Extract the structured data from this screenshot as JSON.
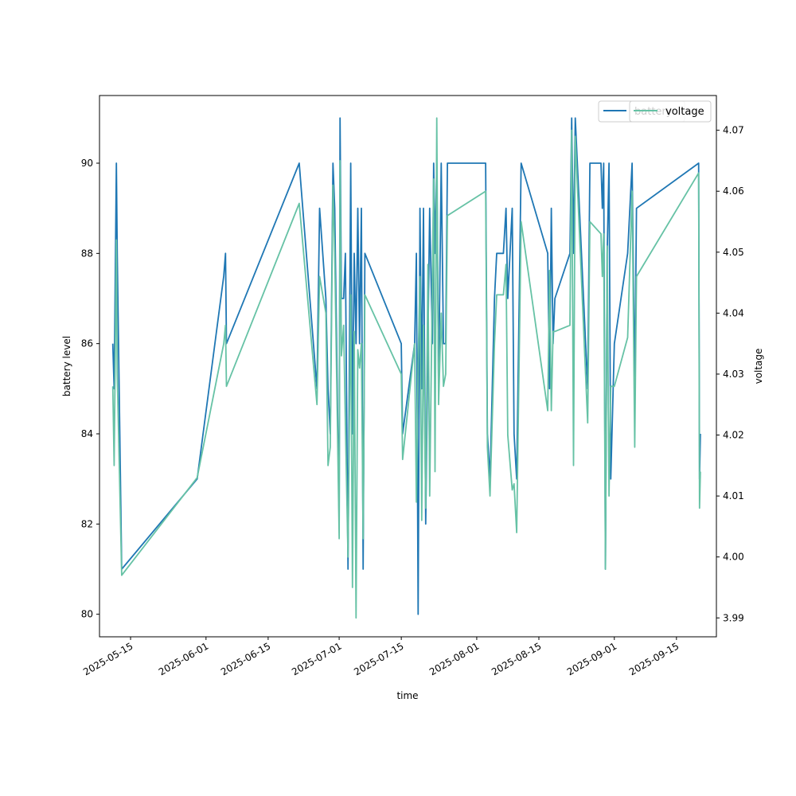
{
  "chart_data": {
    "type": "line",
    "xlabel": "time",
    "ylabel_left": "battery level",
    "ylabel_right": "voltage",
    "xlim": [
      "2025-05-08",
      "2025-09-24"
    ],
    "ylim_left": [
      79.5,
      91.5
    ],
    "ylim_right": [
      3.9869,
      4.0757
    ],
    "x_ticks": [
      "2025-05-15",
      "2025-06-01",
      "2025-06-15",
      "2025-07-01",
      "2025-07-15",
      "2025-08-01",
      "2025-08-15",
      "2025-09-01",
      "2025-09-15"
    ],
    "y_ticks_left": [
      80,
      82,
      84,
      86,
      88,
      90
    ],
    "y_ticks_right": [
      3.99,
      4.0,
      4.01,
      4.02,
      4.03,
      4.04,
      4.05,
      4.06,
      4.07
    ],
    "y_ticks_right_labels": [
      "3.99",
      "4.00",
      "4.01",
      "4.02",
      "4.03",
      "4.04",
      "4.05",
      "4.06",
      "4.07"
    ],
    "legend": {
      "placement": "top-right",
      "left_series_label": "battery",
      "right_series_label": "voltage"
    },
    "series": [
      {
        "name": "battery",
        "axis": "left",
        "color": "#1f77b4",
        "points": [
          [
            "2025-05-11",
            86.0
          ],
          [
            "2025-05-11.3",
            85.0
          ],
          [
            "2025-05-11.8",
            90.0
          ],
          [
            "2025-05-12.0",
            88.0
          ],
          [
            "2025-05-13.0",
            81.0
          ],
          [
            "2025-05-30.0",
            83.0
          ],
          [
            "2025-06-05.0",
            87.5
          ],
          [
            "2025-06-05.4",
            88.0
          ],
          [
            "2025-06-05.6",
            86.0
          ],
          [
            "2025-06-22.0",
            90.0
          ],
          [
            "2025-06-26.0",
            85.0
          ],
          [
            "2025-06-26.6",
            89.0
          ],
          [
            "2025-06-28.0",
            87.0
          ],
          [
            "2025-06-28.5",
            85.0
          ],
          [
            "2025-06-29.0",
            84.0
          ],
          [
            "2025-06-29.6",
            90.0
          ],
          [
            "2025-06-30.0",
            89.0
          ],
          [
            "2025-07-01.0",
            82.0
          ],
          [
            "2025-07-01.2",
            91.0
          ],
          [
            "2025-07-01.5",
            87.0
          ],
          [
            "2025-07-02.0",
            87.0
          ],
          [
            "2025-07-02.4",
            88.0
          ],
          [
            "2025-07-03.0",
            81.0
          ],
          [
            "2025-07-03.6",
            90.0
          ],
          [
            "2025-07-04.0",
            84.0
          ],
          [
            "2025-07-04.4",
            88.0
          ],
          [
            "2025-07-04.8",
            86.0
          ],
          [
            "2025-07-05.2",
            89.0
          ],
          [
            "2025-07-05.6",
            86.0
          ],
          [
            "2025-07-06.0",
            89.0
          ],
          [
            "2025-07-06.4",
            81.0
          ],
          [
            "2025-07-06.8",
            88.0
          ],
          [
            "2025-07-15.0",
            86.0
          ],
          [
            "2025-07-15.3",
            84.0
          ],
          [
            "2025-07-18.0",
            86.0
          ],
          [
            "2025-07-18.4",
            88.0
          ],
          [
            "2025-07-18.8",
            80.0
          ],
          [
            "2025-07-19.2",
            89.0
          ],
          [
            "2025-07-19.6",
            85.0
          ],
          [
            "2025-07-20.0",
            89.0
          ],
          [
            "2025-07-20.5",
            82.0
          ],
          [
            "2025-07-21.0",
            86.0
          ],
          [
            "2025-07-21.4",
            89.0
          ],
          [
            "2025-07-22.0",
            86.0
          ],
          [
            "2025-07-22.3",
            90.0
          ],
          [
            "2025-07-22.6",
            88.0
          ],
          [
            "2025-07-23.0",
            90.0
          ],
          [
            "2025-07-23.4",
            85.0
          ],
          [
            "2025-07-24.0",
            90.0
          ],
          [
            "2025-07-24.5",
            86.0
          ],
          [
            "2025-07-25.0",
            86.0
          ],
          [
            "2025-07-25.4",
            90.0
          ],
          [
            "2025-08-03.0",
            90.0
          ],
          [
            "2025-08-03.4",
            84.0
          ],
          [
            "2025-08-04.0",
            83.0
          ],
          [
            "2025-08-05.0",
            87.0
          ],
          [
            "2025-08-05.5",
            88.0
          ],
          [
            "2025-08-07.0",
            88.0
          ],
          [
            "2025-08-07.6",
            89.0
          ],
          [
            "2025-08-08.0",
            87.0
          ],
          [
            "2025-08-09.0",
            89.0
          ],
          [
            "2025-08-09.4",
            84.0
          ],
          [
            "2025-08-10.0",
            83.0
          ],
          [
            "2025-08-11.0",
            90.0
          ],
          [
            "2025-08-17.0",
            88.0
          ],
          [
            "2025-08-17.4",
            85.0
          ],
          [
            "2025-08-17.8",
            89.0
          ],
          [
            "2025-08-18.2",
            86.0
          ],
          [
            "2025-08-18.6",
            87.0
          ],
          [
            "2025-08-22.0",
            88.0
          ],
          [
            "2025-08-22.4",
            91.0
          ],
          [
            "2025-08-22.8",
            88.0
          ],
          [
            "2025-08-23.2",
            91.0
          ],
          [
            "2025-08-26.0",
            85.0
          ],
          [
            "2025-08-26.5",
            90.0
          ],
          [
            "2025-08-29.0",
            90.0
          ],
          [
            "2025-08-29.3",
            89.0
          ],
          [
            "2025-08-29.6",
            90.0
          ],
          [
            "2025-08-30.0",
            81.0
          ],
          [
            "2025-08-30.4",
            88.0
          ],
          [
            "2025-08-30.8",
            90.0
          ],
          [
            "2025-08-31.2",
            83.0
          ],
          [
            "2025-09-01.0",
            86.0
          ],
          [
            "2025-09-04.0",
            88.0
          ],
          [
            "2025-09-05.0",
            90.0
          ],
          [
            "2025-09-05.6",
            85.0
          ],
          [
            "2025-09-06.0",
            89.0
          ],
          [
            "2025-09-20.0",
            90.0
          ],
          [
            "2025-09-20.2",
            83.0
          ],
          [
            "2025-09-20.4",
            84.0
          ]
        ]
      },
      {
        "name": "voltage",
        "axis": "right",
        "color": "#66c2a5",
        "points": [
          [
            "2025-05-11",
            4.028
          ],
          [
            "2025-05-11.3",
            4.015
          ],
          [
            "2025-05-11.8",
            4.052
          ],
          [
            "2025-05-12.0",
            4.03
          ],
          [
            "2025-05-13.0",
            3.997
          ],
          [
            "2025-05-30.0",
            4.013
          ],
          [
            "2025-06-05.0",
            4.035
          ],
          [
            "2025-06-05.4",
            4.038
          ],
          [
            "2025-06-05.6",
            4.028
          ],
          [
            "2025-06-22.0",
            4.058
          ],
          [
            "2025-06-26.0",
            4.025
          ],
          [
            "2025-06-26.6",
            4.046
          ],
          [
            "2025-06-28.0",
            4.04
          ],
          [
            "2025-06-28.5",
            4.015
          ],
          [
            "2025-06-29.0",
            4.018
          ],
          [
            "2025-06-29.6",
            4.061
          ],
          [
            "2025-06-30.0",
            4.05
          ],
          [
            "2025-07-01.0",
            4.003
          ],
          [
            "2025-07-01.2",
            4.065
          ],
          [
            "2025-07-01.5",
            4.033
          ],
          [
            "2025-07-02.0",
            4.038
          ],
          [
            "2025-07-02.4",
            4.022
          ],
          [
            "2025-07-03.0",
            4.0
          ],
          [
            "2025-07-03.6",
            4.043
          ],
          [
            "2025-07-04.0",
            3.995
          ],
          [
            "2025-07-04.4",
            4.037
          ],
          [
            "2025-07-04.8",
            3.99
          ],
          [
            "2025-07-05.2",
            4.034
          ],
          [
            "2025-07-05.6",
            4.031
          ],
          [
            "2025-07-06.0",
            4.035
          ],
          [
            "2025-07-06.4",
            4.003
          ],
          [
            "2025-07-06.8",
            4.043
          ],
          [
            "2025-07-15.0",
            4.03
          ],
          [
            "2025-07-15.3",
            4.016
          ],
          [
            "2025-07-18.0",
            4.035
          ],
          [
            "2025-07-18.4",
            4.009
          ],
          [
            "2025-07-18.8",
            4.032
          ],
          [
            "2025-07-19.2",
            4.046
          ],
          [
            "2025-07-19.6",
            4.006
          ],
          [
            "2025-07-20.0",
            4.038
          ],
          [
            "2025-07-20.5",
            4.008
          ],
          [
            "2025-07-21.0",
            4.048
          ],
          [
            "2025-07-21.4",
            4.01
          ],
          [
            "2025-07-22.0",
            4.045
          ],
          [
            "2025-07-22.3",
            4.062
          ],
          [
            "2025-07-22.6",
            4.014
          ],
          [
            "2025-07-23.0",
            4.072
          ],
          [
            "2025-07-23.4",
            4.025
          ],
          [
            "2025-07-24.0",
            4.04
          ],
          [
            "2025-07-24.5",
            4.028
          ],
          [
            "2025-07-25.0",
            4.03
          ],
          [
            "2025-07-25.4",
            4.056
          ],
          [
            "2025-08-03.0",
            4.06
          ],
          [
            "2025-08-03.4",
            4.018
          ],
          [
            "2025-08-04.0",
            4.01
          ],
          [
            "2025-08-05.0",
            4.035
          ],
          [
            "2025-08-05.5",
            4.043
          ],
          [
            "2025-08-07.0",
            4.043
          ],
          [
            "2025-08-07.6",
            4.048
          ],
          [
            "2025-08-08.0",
            4.02
          ],
          [
            "2025-08-09.0",
            4.011
          ],
          [
            "2025-08-09.4",
            4.012
          ],
          [
            "2025-08-10.0",
            4.004
          ],
          [
            "2025-08-11.0",
            4.055
          ],
          [
            "2025-08-17.0",
            4.024
          ],
          [
            "2025-08-17.4",
            4.047
          ],
          [
            "2025-08-17.8",
            4.024
          ],
          [
            "2025-08-18.2",
            4.037
          ],
          [
            "2025-08-18.6",
            4.037
          ],
          [
            "2025-08-22.0",
            4.038
          ],
          [
            "2025-08-22.4",
            4.07
          ],
          [
            "2025-08-22.8",
            4.015
          ],
          [
            "2025-08-23.2",
            4.069
          ],
          [
            "2025-08-26.0",
            4.022
          ],
          [
            "2025-08-26.5",
            4.055
          ],
          [
            "2025-08-29.0",
            4.053
          ],
          [
            "2025-08-29.3",
            4.046
          ],
          [
            "2025-08-29.6",
            4.053
          ],
          [
            "2025-08-30.0",
            3.998
          ],
          [
            "2025-08-30.4",
            4.051
          ],
          [
            "2025-08-30.8",
            4.01
          ],
          [
            "2025-08-31.2",
            4.028
          ],
          [
            "2025-09-01.0",
            4.028
          ],
          [
            "2025-09-04.0",
            4.036
          ],
          [
            "2025-09-05.0",
            4.06
          ],
          [
            "2025-09-05.6",
            4.018
          ],
          [
            "2025-09-06.0",
            4.046
          ],
          [
            "2025-09-20.0",
            4.063
          ],
          [
            "2025-09-20.2",
            4.008
          ],
          [
            "2025-09-20.4",
            4.014
          ]
        ]
      }
    ]
  }
}
